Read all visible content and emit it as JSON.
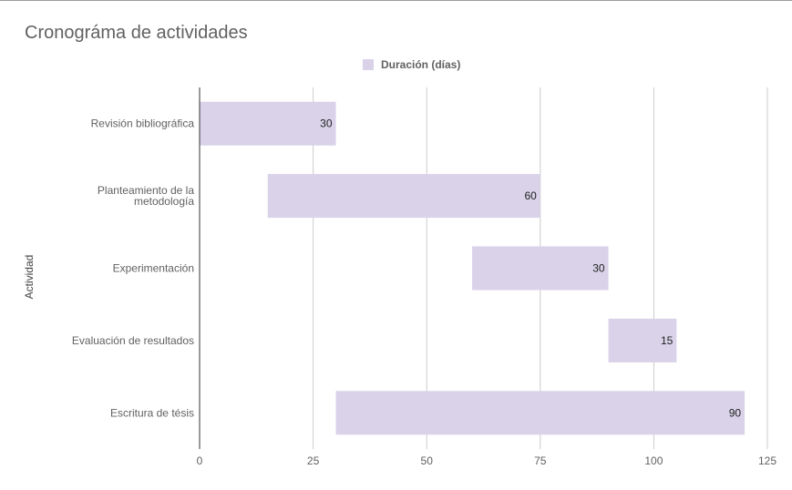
{
  "chart_data": {
    "type": "bar",
    "orientation": "horizontal",
    "stacked": true,
    "title": "Cronográma de actividades",
    "ylabel": "Actividad",
    "xlabel": "",
    "legend": {
      "position": "top",
      "entries": [
        "Duración (días)"
      ]
    },
    "categories": [
      "Revisión bibliográfica",
      "Planteamiento de la metodología",
      "Experimentación",
      "Evaluación de resultados",
      "Escritura de tésis"
    ],
    "category_lines": [
      [
        "Revisión bibliográfica"
      ],
      [
        "Planteamiento de la",
        "metodología"
      ],
      [
        "Experimentación"
      ],
      [
        "Evaluación de resultados"
      ],
      [
        "Escritura de tésis"
      ]
    ],
    "series": [
      {
        "role": "hidden-offset",
        "values": [
          0,
          15,
          60,
          90,
          30
        ]
      },
      {
        "name": "Duración (días)",
        "values": [
          30,
          60,
          30,
          15,
          90
        ]
      }
    ],
    "xlim": [
      0,
      125
    ],
    "xticks": [
      "0",
      "25",
      "50",
      "75",
      "100",
      "125"
    ],
    "grid": true,
    "data_labels": [
      "30",
      "60",
      "30",
      "15",
      "90"
    ],
    "colors": {
      "bar": "#d9d2e9",
      "grid": "#cccccc",
      "axis": "#333333",
      "text": "#616161"
    }
  }
}
